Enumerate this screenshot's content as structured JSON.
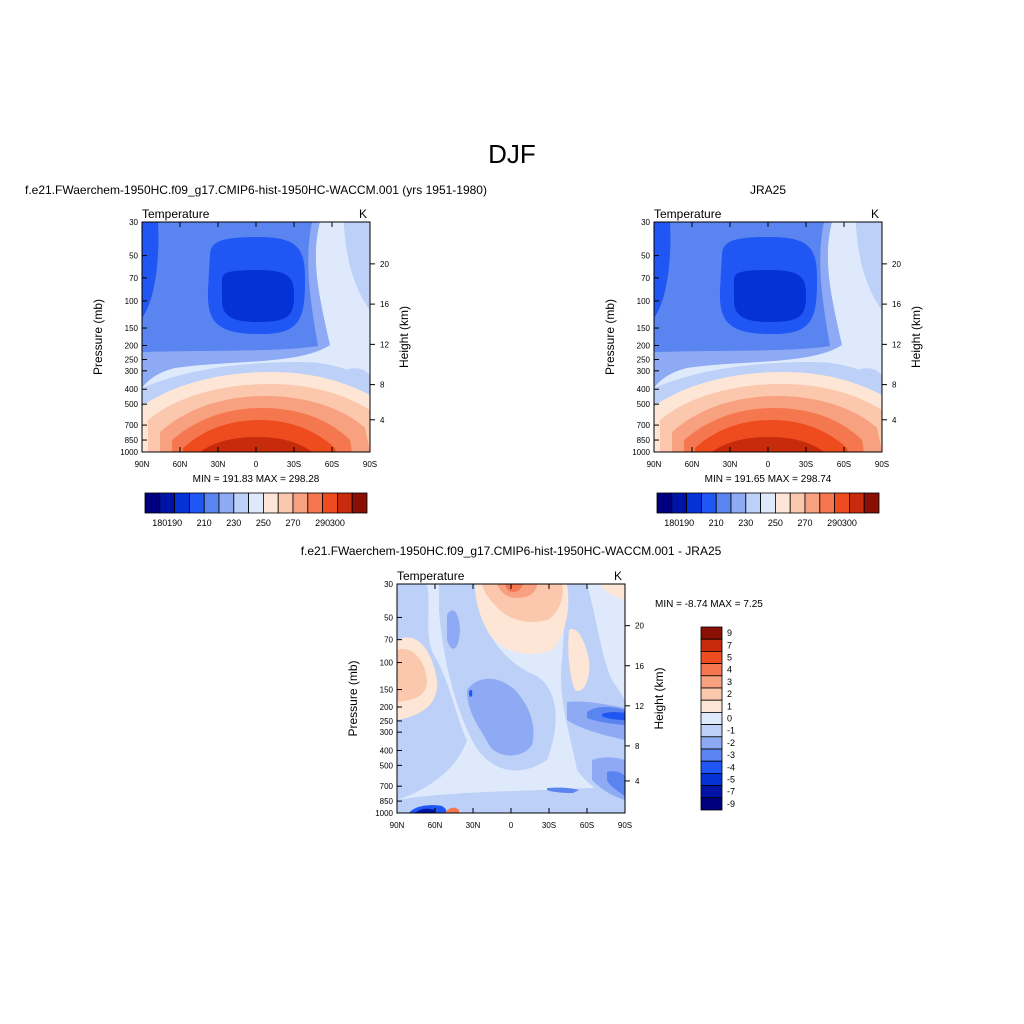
{
  "figure": {
    "title": "DJF",
    "model_case": "f.e21.FWaerchem-1950HC.f09_g17.CMIP6-hist-1950HC-WACCM.001 (yrs 1951-1980)",
    "obs_case": "JRA25",
    "diff_case": "f.e21.FWaerchem-1950HC.f09_g17.CMIP6-hist-1950HC-WACCM.001 - JRA25"
  },
  "chart_data": [
    {
      "id": "model",
      "type": "heatmap",
      "variable": "Temperature",
      "units": "K",
      "ylabel": "Pressure (mb)",
      "ylabel_right": "Height (km)",
      "xticks": [
        "90N",
        "60N",
        "30N",
        "0",
        "30S",
        "60S",
        "90S"
      ],
      "yticks": [
        "30",
        "50",
        "70",
        "100",
        "150",
        "200",
        "250",
        "300",
        "400",
        "500",
        "700",
        "850",
        "1000"
      ],
      "yticks_right": [
        "20",
        "16",
        "12",
        "8",
        "4"
      ],
      "stats": "MIN = 191.83  MAX = 298.28",
      "colorbar": [
        "180",
        "190",
        "210",
        "230",
        "250",
        "270",
        "290",
        "300"
      ]
    },
    {
      "id": "obs",
      "type": "heatmap",
      "variable": "Temperature",
      "units": "K",
      "ylabel": "Pressure (mb)",
      "ylabel_right": "Height (km)",
      "xticks": [
        "90N",
        "60N",
        "30N",
        "0",
        "30S",
        "60S",
        "90S"
      ],
      "yticks": [
        "30",
        "50",
        "70",
        "100",
        "150",
        "200",
        "250",
        "300",
        "400",
        "500",
        "700",
        "850",
        "1000"
      ],
      "yticks_right": [
        "20",
        "16",
        "12",
        "8",
        "4"
      ],
      "stats": "MIN = 191.65  MAX = 298.74",
      "colorbar": [
        "180",
        "190",
        "210",
        "230",
        "250",
        "270",
        "290",
        "300"
      ]
    },
    {
      "id": "diff",
      "type": "heatmap",
      "variable": "Temperature",
      "units": "K",
      "ylabel": "Pressure (mb)",
      "ylabel_right": "Height (km)",
      "xticks": [
        "90N",
        "60N",
        "30N",
        "0",
        "30S",
        "60S",
        "90S"
      ],
      "yticks": [
        "30",
        "50",
        "70",
        "100",
        "150",
        "200",
        "250",
        "300",
        "400",
        "500",
        "700",
        "850",
        "1000"
      ],
      "yticks_right": [
        "20",
        "16",
        "12",
        "8",
        "4"
      ],
      "stats": "MIN =  -8.74  MAX =   7.25",
      "colorbar": [
        "9",
        "7",
        "5",
        "4",
        "3",
        "2",
        "1",
        "0",
        "-1",
        "-2",
        "-3",
        "-4",
        "-5",
        "-7",
        "-9"
      ]
    }
  ],
  "colors": {
    "abs_scale": [
      "#00007f",
      "#0013a7",
      "#0432d6",
      "#1f56f4",
      "#5a84f0",
      "#8eaaf4",
      "#bcd0f8",
      "#deeafb",
      "#fde6d6",
      "#fbc8ad",
      "#f8a180",
      "#f5774f",
      "#ee4b1e",
      "#c72b0c",
      "#8a0f05"
    ],
    "diff_scale": [
      "#8a0f05",
      "#c72b0c",
      "#ee4b1e",
      "#f5774f",
      "#f8a180",
      "#fbc8ad",
      "#fde6d6",
      "#deeafb",
      "#bcd0f8",
      "#8eaaf4",
      "#5a84f0",
      "#1f56f4",
      "#0432d6",
      "#0013a7",
      "#00007f"
    ]
  }
}
